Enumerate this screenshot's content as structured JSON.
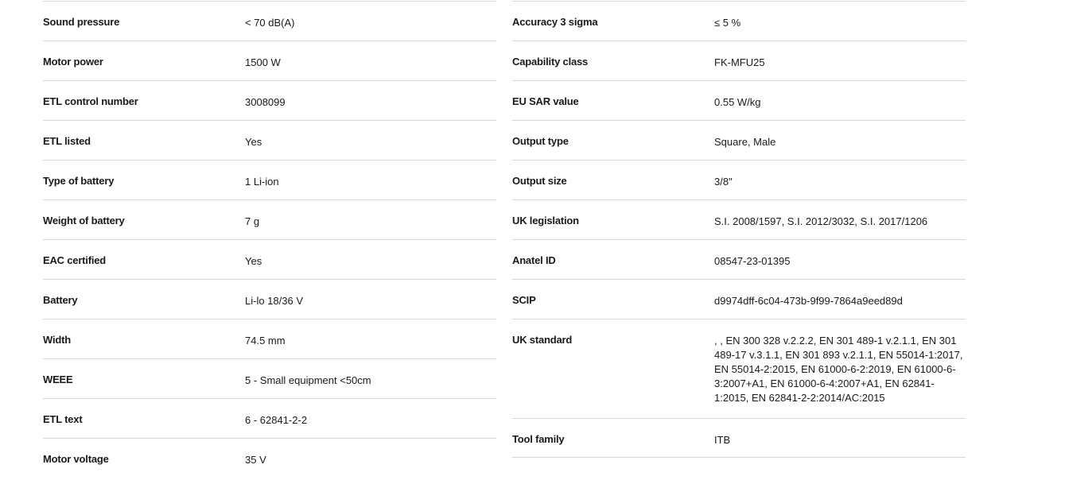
{
  "left": [
    {
      "label": "Sound pressure",
      "value": "< 70 dB(A)"
    },
    {
      "label": "Motor power",
      "value": "1500 W"
    },
    {
      "label": "ETL control number",
      "value": "3008099"
    },
    {
      "label": "ETL listed",
      "value": "Yes"
    },
    {
      "label": "Type of battery",
      "value": "1 Li-ion"
    },
    {
      "label": "Weight of battery",
      "value": "7 g"
    },
    {
      "label": "EAC certified",
      "value": "Yes"
    },
    {
      "label": "Battery",
      "value": "Li-lo 18/36 V"
    },
    {
      "label": "Width",
      "value": "74.5 mm"
    },
    {
      "label": "WEEE",
      "value": "5 - Small equipment <50cm"
    },
    {
      "label": "ETL text",
      "value": "6 - 62841-2-2"
    },
    {
      "label": "Motor voltage",
      "value": "35 V"
    }
  ],
  "right": [
    {
      "label": "Accuracy 3 sigma",
      "value": "≤ 5 %"
    },
    {
      "label": "Capability class",
      "value": "FK-MFU25"
    },
    {
      "label": "EU SAR value",
      "value": "0.55 W/kg"
    },
    {
      "label": "Output type",
      "value": "Square, Male"
    },
    {
      "label": "Output size",
      "value": "3/8\""
    },
    {
      "label": "UK legislation",
      "value": "S.I. 2008/1597, S.I. 2012/3032, S.I. 2017/1206"
    },
    {
      "label": "Anatel ID",
      "value": "08547-23-01395"
    },
    {
      "label": "SCIP",
      "value": "d9974dff-6c04-473b-9f99-7864a9eed89d"
    },
    {
      "label": "UK standard",
      "value": ", , EN 300 328 v.2.2.2, EN 301 489-1 v.2.1.1, EN 301 489-17 v.3.1.1, EN 301 893 v.2.1.1, EN 55014-1:2017, EN 55014-2:2015, EN 61000-6-2:2019, EN 61000-6-3:2007+A1, EN 61000-6-4:2007+A1, EN 62841-1:2015, EN 62841-2-2:2014/AC:2015"
    },
    {
      "label": "Tool family",
      "value": "ITB"
    }
  ]
}
